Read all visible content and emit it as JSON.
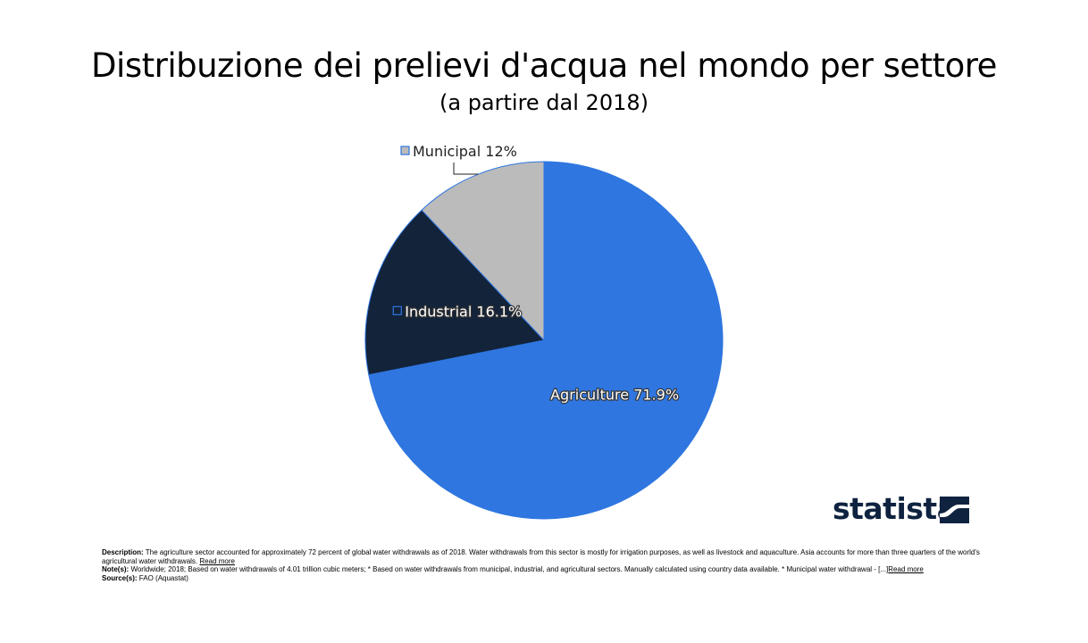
{
  "title": "Distribuzione dei prelievi d'acqua nel mondo per settore",
  "subtitle": "(a partire dal 2018)",
  "chart_data": {
    "type": "pie",
    "title": "Distribuzione dei prelievi d'acqua nel mondo per settore",
    "subtitle": "(a partire dal 2018)",
    "slices": [
      {
        "label": "Agriculture 71.9%",
        "name": "Agriculture",
        "value": 71.9,
        "color": "#2f76e0"
      },
      {
        "label": "Industrial 16.1%",
        "name": "Industrial",
        "value": 16.1,
        "color": "#13233a"
      },
      {
        "label": "Municipal 12%",
        "name": "Municipal",
        "value": 12.0,
        "color": "#bbbbbb"
      }
    ],
    "start": "12 o'clock, clockwise",
    "legend": "none"
  },
  "logo": {
    "text": "statista",
    "color": "#0f2340"
  },
  "footer": {
    "description_label": "Description:",
    "description": "The agriculture sector accounted for approximately 72 percent of global water withdrawals as of 2018. Water withdrawals from this sector is mostly for irrigation purposes, as well as livestock and aquaculture. Asia accounts for more than three quarters of the world's agricultural water withdrawals.",
    "description_link": "Read more",
    "notes_label": "Note(s):",
    "notes": "Worldwide; 2018; Based on water withdrawals of 4.01 trillion cubic meters; * Based on water withdrawals from municipal, industrial, and agricultural sectors. Manually calculated using country data available. * Municipal water withdrawal - [...]",
    "notes_link": "Read more",
    "source_label": "Source(s):",
    "source": "FAO (Aquastat)"
  }
}
